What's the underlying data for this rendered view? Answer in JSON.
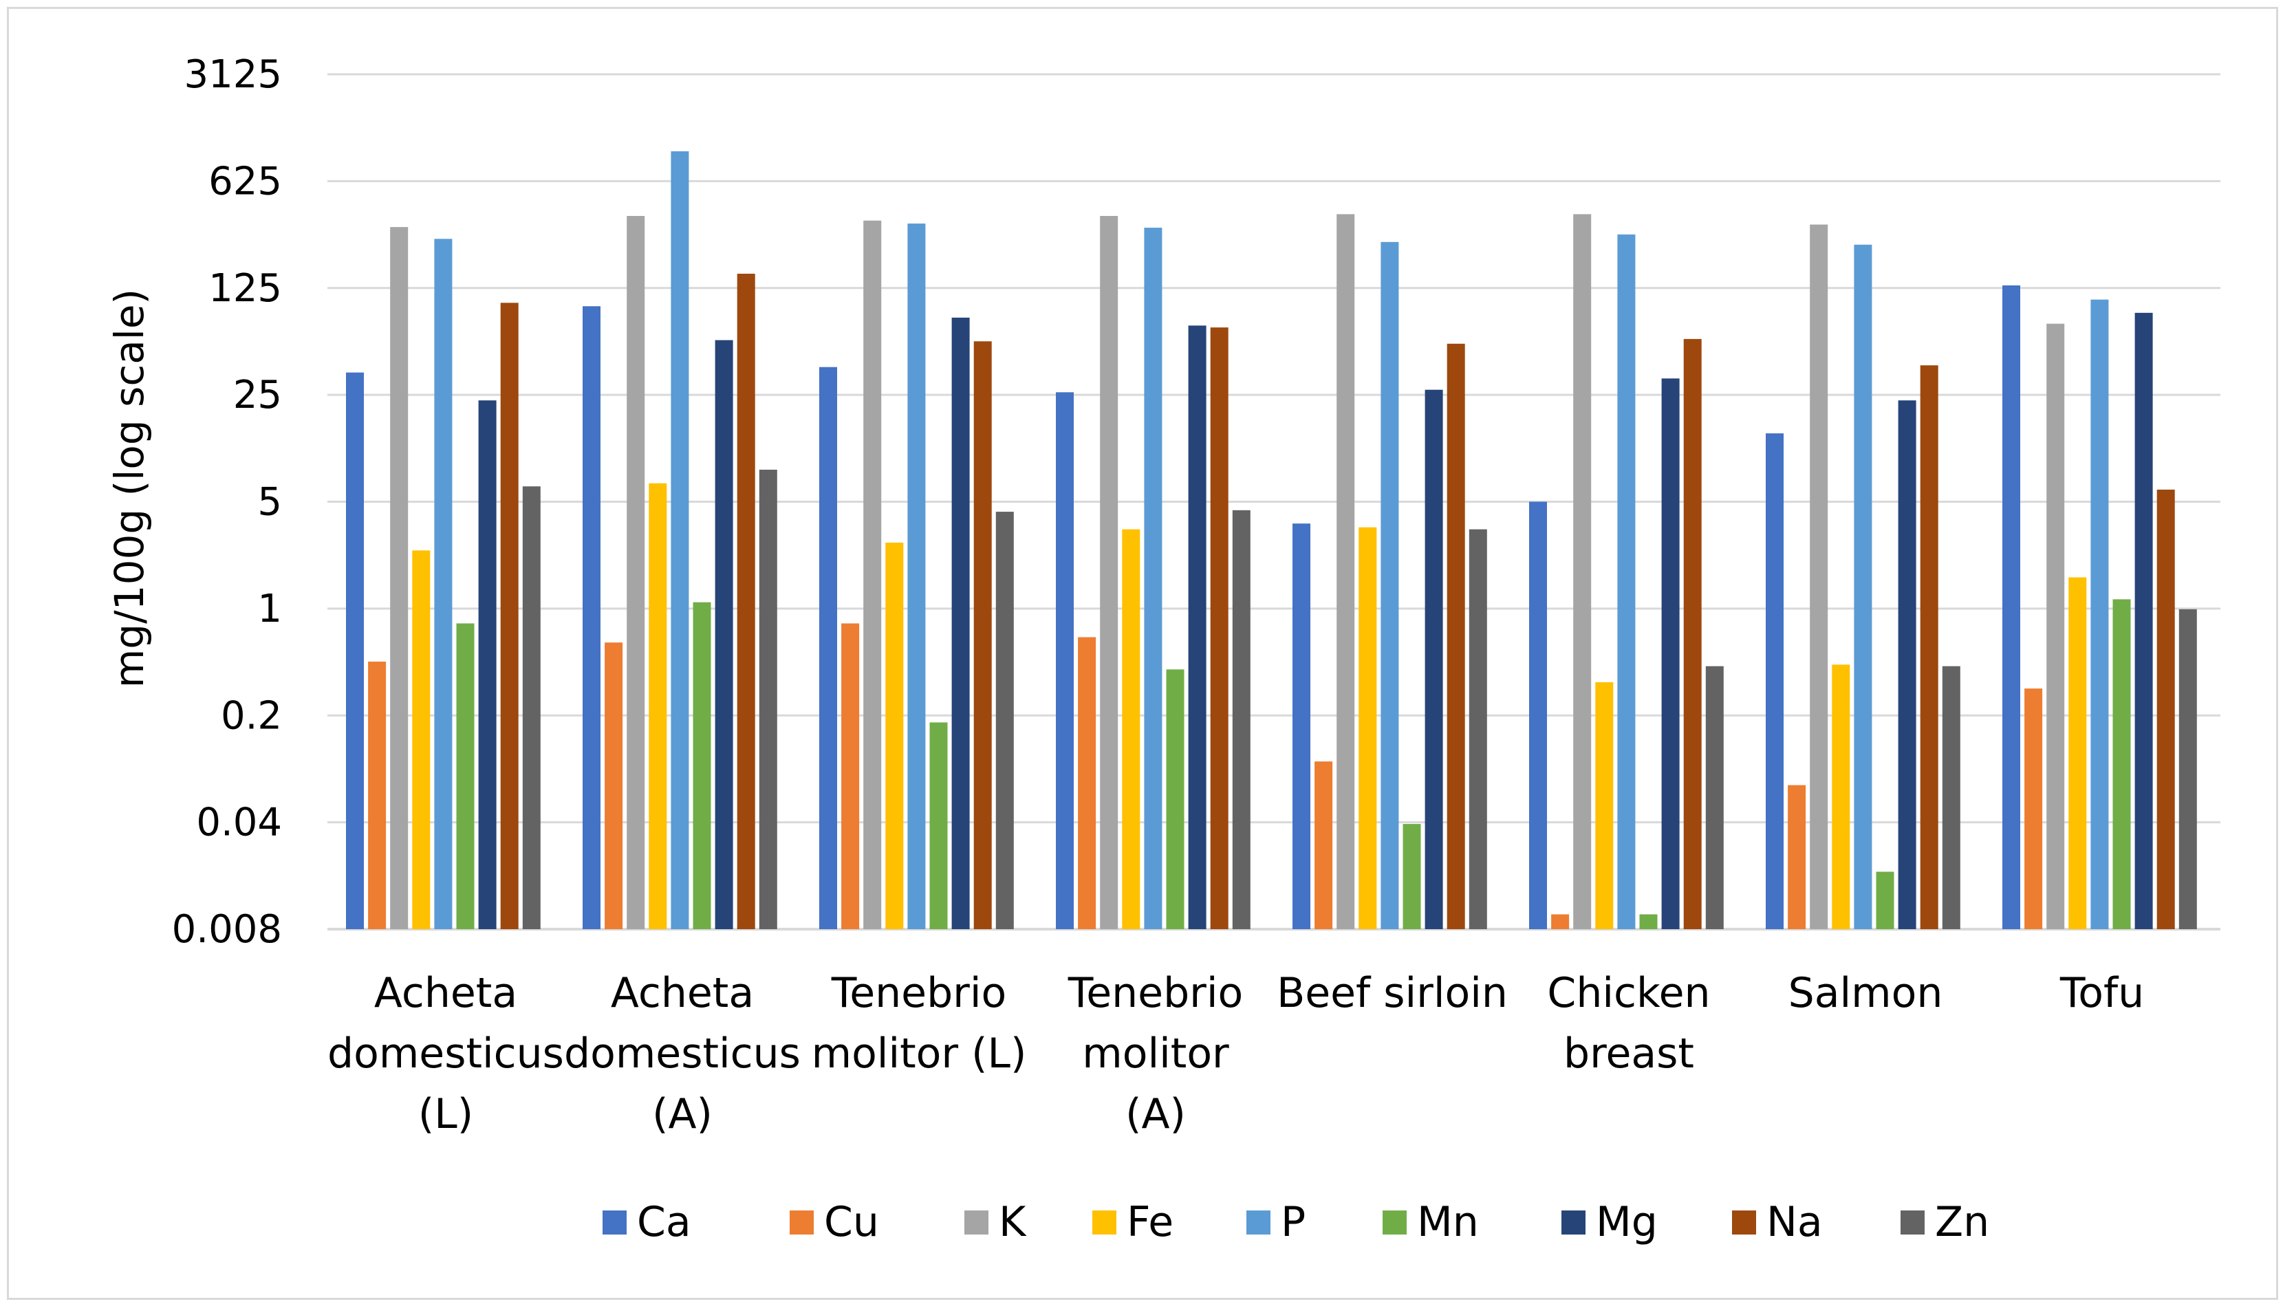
{
  "chart_data": {
    "type": "bar",
    "title": "",
    "xlabel": "",
    "ylabel": "mg/100g (log scale)",
    "yscale": "log",
    "ylim": [
      0.008,
      3125
    ],
    "yticks": [
      0.008,
      0.04,
      0.2,
      1,
      5,
      25,
      125,
      625,
      3125
    ],
    "ytick_labels": [
      "0.008",
      "0.04",
      "0.2",
      "1",
      "5",
      "25",
      "125",
      "625",
      "3125"
    ],
    "grid": true,
    "legend_position": "bottom",
    "categories": [
      [
        "Acheta",
        "domesticus",
        "(L)"
      ],
      [
        "Acheta",
        "domesticus",
        "(A)"
      ],
      [
        "Tenebrio",
        "molitor (L)"
      ],
      [
        "Tenebrio",
        "molitor",
        "(A)"
      ],
      [
        "Beef sirloin"
      ],
      [
        "Chicken",
        "breast"
      ],
      [
        "Salmon"
      ],
      [
        "Tofu"
      ]
    ],
    "series": [
      {
        "name": "Ca",
        "color": "#4472c4",
        "values": [
          35,
          95,
          38,
          26,
          3.6,
          5,
          14,
          130
        ]
      },
      {
        "name": "Cu",
        "color": "#ed7d31",
        "values": [
          0.45,
          0.6,
          0.8,
          0.65,
          0.1,
          0.01,
          0.07,
          0.3
        ]
      },
      {
        "name": "K",
        "color": "#a5a5a5",
        "values": [
          313,
          370,
          345,
          370,
          380,
          380,
          325,
          73
        ]
      },
      {
        "name": "Fe",
        "color": "#ffc000",
        "values": [
          2.4,
          6.6,
          2.7,
          3.3,
          3.4,
          0.33,
          0.43,
          1.6
        ]
      },
      {
        "name": "P",
        "color": "#5b9bd5",
        "values": [
          262,
          980,
          330,
          310,
          250,
          280,
          240,
          105
        ]
      },
      {
        "name": "Mn",
        "color": "#70ad47",
        "values": [
          0.8,
          1.1,
          0.18,
          0.4,
          0.039,
          0.01,
          0.019,
          1.15
        ]
      },
      {
        "name": "Mg",
        "color": "#264478",
        "values": [
          23,
          57,
          80,
          71,
          27,
          32,
          23,
          86
        ]
      },
      {
        "name": "Na",
        "color": "#9e480e",
        "values": [
          100,
          155,
          56,
          69,
          54,
          58,
          39,
          6
        ]
      },
      {
        "name": "Zn",
        "color": "#636363",
        "values": [
          6.3,
          8.1,
          4.3,
          4.4,
          3.3,
          0.42,
          0.42,
          0.99
        ]
      }
    ]
  }
}
